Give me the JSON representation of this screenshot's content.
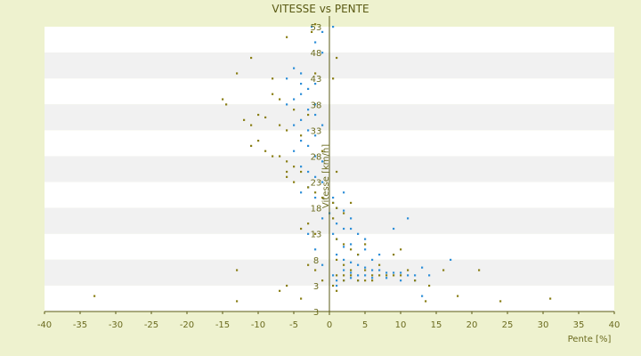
{
  "chart_data": {
    "type": "scatter",
    "title": "VITESSE vs PENTE",
    "xlabel": "Pente [%]",
    "ylabel": "Vitesse [km/h]",
    "xlim": [
      -40,
      40
    ],
    "ylim": [
      0,
      55
    ],
    "x_ticks": [
      "-40",
      "-35",
      "-30",
      "-25",
      "-20",
      "-15",
      "-10",
      "-5",
      "0",
      "5",
      "10",
      "15",
      "20",
      "25",
      "30",
      "35",
      "40"
    ],
    "y_ticks": [
      "3",
      "3",
      "8",
      "13",
      "18",
      "23",
      "28",
      "33",
      "38",
      "43",
      "48",
      "53"
    ],
    "grid": "horizontal bands",
    "colors": {
      "series_a": "#2e8fd8",
      "series_b": "#8a7f16",
      "axis": "#5a5a14",
      "band": "#f1f1f1"
    },
    "series": [
      {
        "color": "#2e8fd8",
        "points": [
          [
            -2.5,
            55
          ],
          [
            0.5,
            55
          ],
          [
            -1,
            54
          ],
          [
            -2,
            52
          ],
          [
            -1,
            50
          ],
          [
            -5,
            47
          ],
          [
            -4,
            46
          ],
          [
            -6,
            45
          ],
          [
            -2,
            44
          ],
          [
            -3,
            43
          ],
          [
            -4,
            42
          ],
          [
            -5,
            41
          ],
          [
            -6,
            40
          ],
          [
            -3,
            39
          ],
          [
            -2,
            38
          ],
          [
            -4,
            37
          ],
          [
            -5,
            36
          ],
          [
            -3,
            35
          ],
          [
            -2,
            34
          ],
          [
            -4,
            33
          ],
          [
            -3,
            32
          ],
          [
            -5,
            31
          ],
          [
            -2,
            30
          ],
          [
            -1,
            29
          ],
          [
            -4,
            28
          ],
          [
            -3,
            27
          ],
          [
            -2,
            26
          ],
          [
            -1,
            25
          ],
          [
            -3,
            24
          ],
          [
            -4,
            23
          ],
          [
            -2,
            22
          ],
          [
            0.5,
            21
          ],
          [
            1,
            20
          ],
          [
            2,
            19.5
          ],
          [
            0,
            19
          ],
          [
            3,
            18
          ],
          [
            1,
            17
          ],
          [
            2,
            16
          ],
          [
            4,
            15
          ],
          [
            0.5,
            15
          ],
          [
            1,
            14
          ],
          [
            3,
            13
          ],
          [
            2,
            12.5
          ],
          [
            5,
            12
          ],
          [
            4,
            11
          ],
          [
            1,
            11
          ],
          [
            6,
            10
          ],
          [
            2,
            10
          ],
          [
            3,
            9.5
          ],
          [
            4,
            9
          ],
          [
            5,
            8.5
          ],
          [
            2,
            8
          ],
          [
            6,
            8
          ],
          [
            7,
            8
          ],
          [
            3,
            7.5
          ],
          [
            8,
            7.5
          ],
          [
            9,
            7.5
          ],
          [
            4,
            7
          ],
          [
            10,
            7.5
          ],
          [
            5,
            7
          ],
          [
            11,
            7
          ],
          [
            12,
            7
          ],
          [
            13,
            8.5
          ],
          [
            6,
            6.5
          ],
          [
            8,
            6.5
          ],
          [
            10,
            6
          ],
          [
            12,
            6
          ],
          [
            14,
            7
          ],
          [
            1,
            6
          ],
          [
            2,
            6
          ],
          [
            3,
            6.5
          ],
          [
            4,
            6
          ],
          [
            1,
            5
          ],
          [
            0.5,
            7
          ],
          [
            -1,
            9
          ],
          [
            -2,
            12
          ],
          [
            -3,
            15
          ],
          [
            -1,
            18
          ],
          [
            0.5,
            22
          ],
          [
            2,
            23
          ],
          [
            3,
            16
          ],
          [
            5,
            14
          ],
          [
            7,
            11
          ],
          [
            9,
            16
          ],
          [
            11,
            18
          ],
          [
            13,
            3
          ],
          [
            17,
            10
          ],
          [
            -2,
            40
          ],
          [
            -1,
            36
          ],
          [
            -4,
            44
          ]
        ]
      },
      {
        "color": "#8a7f16",
        "points": [
          [
            -2,
            55.5
          ],
          [
            -2.5,
            54
          ],
          [
            -6,
            53
          ],
          [
            -11,
            49
          ],
          [
            -13,
            46
          ],
          [
            -8,
            45
          ],
          [
            -2,
            46
          ],
          [
            -15,
            41
          ],
          [
            -14.5,
            40
          ],
          [
            -10,
            38
          ],
          [
            -9,
            37.5
          ],
          [
            -11,
            36
          ],
          [
            -12,
            37
          ],
          [
            -7,
            36
          ],
          [
            -6,
            35
          ],
          [
            -4,
            34
          ],
          [
            -10,
            33
          ],
          [
            -11,
            32
          ],
          [
            -9,
            31
          ],
          [
            -7,
            30
          ],
          [
            -6,
            29
          ],
          [
            -5,
            28
          ],
          [
            -4,
            27
          ],
          [
            -8,
            30
          ],
          [
            -6,
            26
          ],
          [
            -5,
            25
          ],
          [
            -3,
            24
          ],
          [
            -2,
            23
          ],
          [
            -1,
            22
          ],
          [
            0.5,
            21
          ],
          [
            1,
            20
          ],
          [
            2,
            19
          ],
          [
            0.5,
            18
          ],
          [
            -3,
            17
          ],
          [
            -4,
            16
          ],
          [
            -2,
            15
          ],
          [
            1,
            14
          ],
          [
            2,
            13
          ],
          [
            3,
            12
          ],
          [
            4,
            11
          ],
          [
            1,
            10
          ],
          [
            2,
            9
          ],
          [
            3,
            8
          ],
          [
            5,
            8
          ],
          [
            6,
            7
          ],
          [
            7,
            7
          ],
          [
            8,
            7
          ],
          [
            9,
            7
          ],
          [
            10,
            7
          ],
          [
            2,
            6
          ],
          [
            3,
            7
          ],
          [
            4,
            6
          ],
          [
            5,
            6
          ],
          [
            6,
            6
          ],
          [
            0.5,
            5
          ],
          [
            1,
            4
          ],
          [
            -33,
            3
          ],
          [
            -13,
            2
          ],
          [
            -7,
            4
          ],
          [
            -6,
            5
          ],
          [
            -13,
            8
          ],
          [
            -3,
            9
          ],
          [
            -2,
            8
          ],
          [
            -1,
            6
          ],
          [
            1,
            7
          ],
          [
            2,
            7
          ],
          [
            16,
            8
          ],
          [
            21,
            8
          ],
          [
            18,
            3
          ],
          [
            24,
            2
          ],
          [
            31,
            2.5
          ],
          [
            13.5,
            2
          ],
          [
            -4,
            2.5
          ],
          [
            12,
            6
          ],
          [
            14,
            5
          ],
          [
            9,
            11
          ],
          [
            10,
            12
          ],
          [
            5,
            13
          ],
          [
            7,
            9
          ],
          [
            11,
            8
          ],
          [
            3,
            21
          ],
          [
            1,
            27
          ],
          [
            -1,
            31
          ],
          [
            -6,
            27
          ],
          [
            -7,
            41
          ],
          [
            -5,
            39
          ],
          [
            -3,
            38
          ],
          [
            0.5,
            45
          ],
          [
            1,
            49
          ],
          [
            -8,
            42
          ]
        ]
      }
    ]
  }
}
